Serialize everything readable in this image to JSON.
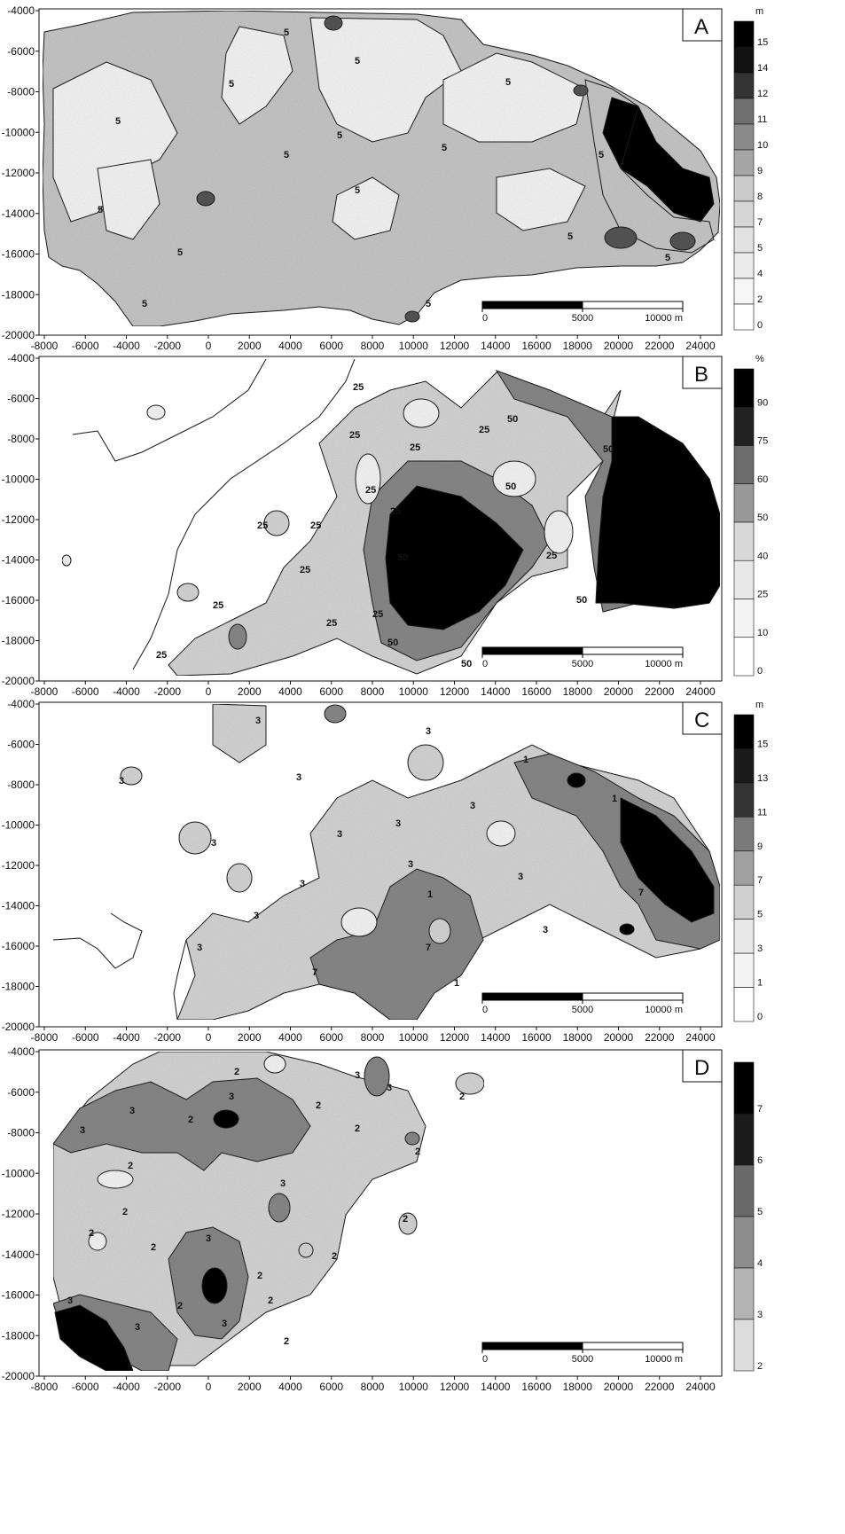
{
  "figure": {
    "x_ticks": [
      "-8000",
      "-6000",
      "-4000",
      "-2000",
      "0",
      "2000",
      "4000",
      "6000",
      "8000",
      "10000",
      "12000",
      "14000",
      "16000",
      "18000",
      "20000",
      "22000",
      "24000"
    ],
    "y_ticks": [
      "-4000",
      "-6000",
      "-8000",
      "-10000",
      "-12000",
      "-14000",
      "-16000",
      "-18000",
      "-20000"
    ],
    "scale_bar": {
      "labels": [
        "0",
        "5000",
        "10000 m"
      ]
    },
    "colors": {
      "c0": "#ffffff",
      "c1": "#dedede",
      "c2": "#c6c6c6",
      "c3": "#8e8e8e",
      "c4": "#5a5a5a",
      "c5": "#0a0a0a",
      "line": "#222222"
    }
  },
  "panels": [
    {
      "letter": "A",
      "unit": "m",
      "legend": [
        "15",
        "14",
        "12",
        "11",
        "10",
        "9",
        "8",
        "7",
        "5",
        "4",
        "2",
        "0"
      ],
      "legend_shades": [
        "#000000",
        "#111111",
        "#333333",
        "#6f6f6f",
        "#8a8a8a",
        "#a6a6a6",
        "#cacaca",
        "#d6d6d6",
        "#e2e2e2",
        "#ececec",
        "#f6f6f6",
        "#ffffff"
      ],
      "contour_labels": [
        "5",
        "5",
        "5",
        "5",
        "5",
        "5",
        "5",
        "5",
        "5",
        "5",
        "5",
        "5",
        "5",
        "5",
        "5",
        "5"
      ]
    },
    {
      "letter": "B",
      "unit": "%",
      "legend": [
        "90",
        "75",
        "60",
        "50",
        "40",
        "25",
        "10",
        "0"
      ],
      "legend_shades": [
        "#000000",
        "#222222",
        "#6c6c6c",
        "#999999",
        "#d8d8d8",
        "#e8e8e8",
        "#f4f4f4",
        "#ffffff"
      ],
      "contour_labels": [
        "25",
        "25",
        "25",
        "25",
        "25",
        "25",
        "25",
        "25",
        "25",
        "25",
        "25",
        "50",
        "50",
        "50",
        "50",
        "50",
        "50",
        "50",
        "25",
        "25",
        "25"
      ]
    },
    {
      "letter": "C",
      "unit": "m",
      "legend": [
        "15",
        "13",
        "11",
        "9",
        "7",
        "5",
        "3",
        "1",
        "0"
      ],
      "legend_shades": [
        "#000000",
        "#1a1a1a",
        "#333333",
        "#7a7a7a",
        "#a0a0a0",
        "#d0d0d0",
        "#e8e8e8",
        "#f4f4f4",
        "#ffffff"
      ],
      "contour_labels": [
        "3",
        "3",
        "3",
        "3",
        "3",
        "3",
        "3",
        "3",
        "3",
        "3",
        "3",
        "3",
        "3",
        "3",
        "7",
        "7",
        "7",
        "1",
        "1",
        "1",
        "1"
      ]
    },
    {
      "letter": "D",
      "unit": "",
      "legend": [
        "7",
        "6",
        "5",
        "4",
        "3",
        "2"
      ],
      "legend_shades": [
        "#000000",
        "#1c1c1c",
        "#6a6a6a",
        "#8d8d8d",
        "#b4b4b4",
        "#dcdcdc"
      ],
      "contour_labels": [
        "2",
        "2",
        "2",
        "2",
        "2",
        "2",
        "2",
        "2",
        "2",
        "2",
        "2",
        "2",
        "2",
        "3",
        "3",
        "3",
        "3",
        "3",
        "3",
        "3",
        "3",
        "3",
        "3",
        "2",
        "2",
        "2"
      ]
    }
  ]
}
